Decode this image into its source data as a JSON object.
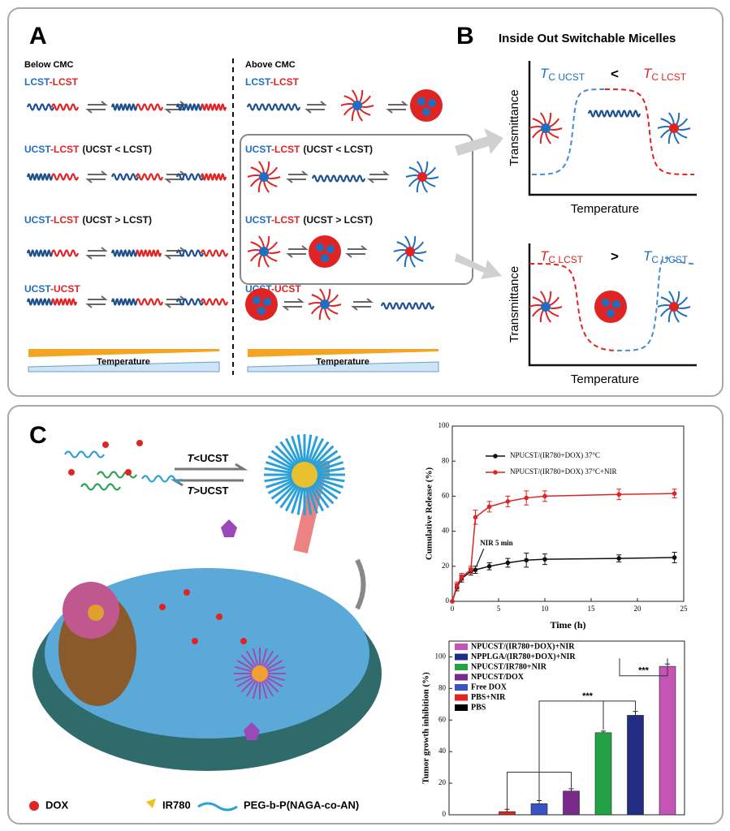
{
  "panel_a": {
    "label": "A",
    "below": "Below CMC",
    "above": "Above CMC",
    "left_rows": [
      {
        "a": "LCST",
        "b": "-LCST"
      },
      {
        "a": "UCST",
        "b": "-LCST",
        "note": "(UCST < LCST)"
      },
      {
        "a": "UCST",
        "b": "-LCST",
        "note": "(UCST > LCST)"
      },
      {
        "a": "UCST",
        "b": "-UCST"
      }
    ],
    "right_rows": [
      {
        "a": "LCST",
        "b": "-LCST"
      },
      {
        "a": "UCST",
        "b": "-LCST",
        "note": "(UCST < LCST)"
      },
      {
        "a": "UCST",
        "b": "-LCST",
        "note": "(UCST > LCST)"
      },
      {
        "a": "UCST",
        "b": "-UCST"
      }
    ],
    "temperature_left": "Temperature",
    "temperature_right": "Temperature"
  },
  "panel_b": {
    "label": "B",
    "title": "Inside Out Switchable Micelles",
    "top": {
      "left_t": "T",
      "left_sub": "C UCST",
      "op": "<",
      "right_t": "T",
      "right_sub": "C LCST",
      "y_label": "Transmittance",
      "x_label": "Temperature"
    },
    "bottom": {
      "left_t": "T",
      "left_sub": "C LCST",
      "op": ">",
      "right_t": "T",
      "right_sub": "C UCST",
      "y_label": "Transmittance",
      "x_label": "Temperature"
    }
  },
  "panel_c": {
    "label": "C",
    "below": {
      "t": "T",
      "rest": "<UCST"
    },
    "above": {
      "t": "T",
      "rest": ">UCST"
    },
    "legend": [
      "DOX",
      "IR780",
      "PEG-b-P(NAGA-co-AN)"
    ]
  },
  "chart_data": [
    {
      "type": "line",
      "y_label": "Cumulative Release (%)",
      "x_label": "Time (h)",
      "annotation": "NIR 5 min",
      "x": [
        0,
        0.5,
        1,
        2,
        2.5,
        4,
        6,
        8,
        10,
        18,
        24
      ],
      "series": [
        {
          "name": "NPUCST/(IR780+DOX) 37°C",
          "color": "#111111",
          "values": [
            0,
            8,
            13,
            17,
            18,
            20,
            22,
            23.5,
            24,
            24.5,
            25
          ],
          "errors": [
            0,
            2,
            2,
            2,
            2,
            2,
            2.5,
            4,
            3,
            2,
            3
          ]
        },
        {
          "name": "NPUCST/(IR780+DOX) 37°C+NIR",
          "color": "#e02424",
          "values": [
            0,
            9,
            14,
            18,
            48,
            54,
            57,
            59,
            60,
            61,
            61.5
          ],
          "errors": [
            0,
            2,
            2,
            2,
            4,
            3,
            3,
            4,
            3,
            3,
            2.5
          ]
        }
      ],
      "xlim": [
        0,
        25
      ],
      "xticks": [
        0,
        5,
        10,
        15,
        20,
        25
      ],
      "ylim": [
        0,
        100
      ],
      "yticks": [
        0,
        20,
        40,
        60,
        80,
        100
      ]
    },
    {
      "type": "bar",
      "y_label": "Tumor growth inhibition (%)",
      "categories": [
        "PBS",
        "PBS+NIR",
        "Free DOX",
        "NPUCST/DOX",
        "NPUCST/IR780+NIR",
        "NPPLGA/(IR780+DOX)+NIR",
        "NPUCST/(IR780+DOX)+NIR"
      ],
      "values": [
        0,
        2,
        7,
        15,
        52,
        63,
        94
      ],
      "errors": [
        0,
        1.5,
        2,
        1.5,
        1,
        2.5,
        1.5
      ],
      "colors": [
        "#000000",
        "#e02424",
        "#3a52c8",
        "#7a2a8a",
        "#22a244",
        "#222c82",
        "#c455b4"
      ],
      "significance": [
        "***",
        "***"
      ],
      "ylim": [
        0,
        110
      ],
      "yticks": [
        0,
        20,
        40,
        60,
        80,
        100
      ]
    }
  ]
}
